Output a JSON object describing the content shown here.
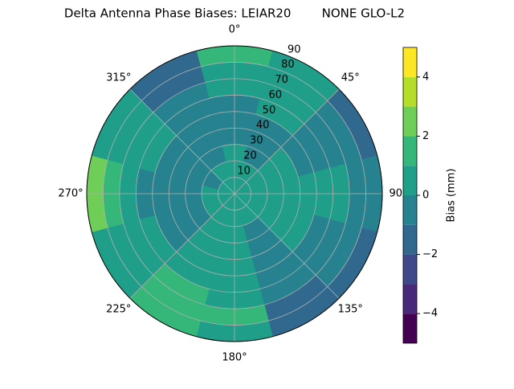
{
  "chart_data": {
    "type": "polar-contour",
    "title": "Delta Antenna Phase Biases: LEIAR20        NONE GLO-L2",
    "azimuths": [
      0,
      30,
      60,
      90,
      120,
      150,
      180,
      210,
      240,
      270,
      300,
      330
    ],
    "zenith_edges": [
      0,
      10,
      20,
      30,
      40,
      50,
      60,
      70,
      80,
      90
    ],
    "values": [
      [
        0.3,
        0.5,
        0.3,
        -0.3,
        -0.5,
        0,
        0.5,
        0.8,
        1.2
      ],
      [
        0.3,
        0.2,
        -0.3,
        -0.5,
        -0.3,
        0.2,
        0.5,
        0.5,
        0.8
      ],
      [
        0.3,
        0.5,
        0.5,
        0.2,
        -0.3,
        -0.5,
        -0.3,
        -0.5,
        -1.2
      ],
      [
        0.3,
        0.5,
        0.5,
        0.3,
        0.5,
        0.6,
        0.5,
        0,
        -0.5
      ],
      [
        0.3,
        0.3,
        0.5,
        0.5,
        0.3,
        0,
        -0.3,
        -0.8,
        -1.5
      ],
      [
        0.3,
        0.2,
        0,
        -0.3,
        -0.5,
        -0.5,
        -0.8,
        -1.2,
        -1.8
      ],
      [
        0.3,
        0.3,
        0.5,
        0.5,
        0.5,
        0.8,
        1,
        1.2,
        1
      ],
      [
        0.3,
        0.5,
        0.5,
        0.7,
        0.8,
        0.8,
        1.2,
        1.5,
        1.2
      ],
      [
        0.3,
        0.2,
        -0.3,
        -0.5,
        -0.3,
        0.3,
        0.5,
        0.5,
        0.5
      ],
      [
        0.3,
        0.2,
        -0.3,
        -0.5,
        -0.5,
        -0.3,
        0.5,
        1.5,
        2.5
      ],
      [
        0.3,
        -0.2,
        -0.5,
        -0.5,
        -0.3,
        0.3,
        0.8,
        0.5,
        0.2
      ],
      [
        0.3,
        0.2,
        -0.3,
        -0.5,
        -0.5,
        -0.3,
        -0.5,
        -1,
        -1.5
      ]
    ],
    "rlim": [
      0,
      90
    ],
    "rticks": [
      10,
      20,
      30,
      40,
      50,
      60,
      70,
      80,
      90
    ],
    "thetaticks": [
      {
        "value": 0,
        "label": "0°"
      },
      {
        "value": 45,
        "label": "45°"
      },
      {
        "value": 90,
        "label": "90°"
      },
      {
        "value": 135,
        "label": "135°"
      },
      {
        "value": 180,
        "label": "180°"
      },
      {
        "value": 225,
        "label": "225°"
      },
      {
        "value": 270,
        "label": "270°"
      },
      {
        "value": 315,
        "label": "315°"
      }
    ],
    "grid": true,
    "colorbar": {
      "label": "Bias (mm)",
      "levels": [
        -5,
        -4,
        -3,
        -2,
        -1,
        0,
        1,
        2,
        3,
        4,
        5
      ],
      "colors": [
        "#440154",
        "#482878",
        "#3e4989",
        "#31688e",
        "#26828e",
        "#1f9e89",
        "#35b779",
        "#6ece58",
        "#b5de2b",
        "#fde725"
      ],
      "ticks": [
        {
          "value": -4,
          "label": "−4"
        },
        {
          "value": -2,
          "label": "−2"
        },
        0,
        2,
        4
      ]
    }
  }
}
